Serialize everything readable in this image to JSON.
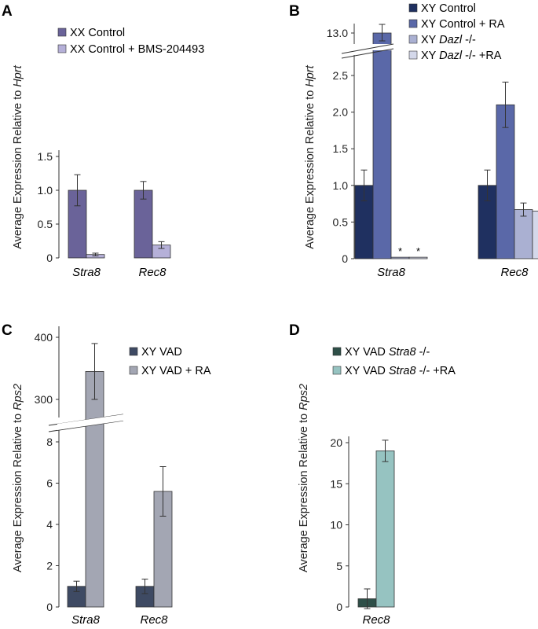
{
  "panels": {
    "A": {
      "letter": "A",
      "ylabel_main": "Average Expression Relative to ",
      "ylabel_italic": "Hprt"
    },
    "B": {
      "letter": "B",
      "ylabel_main": "Average Expression Relative to ",
      "ylabel_italic": "Hprt",
      "asterisk": "*"
    },
    "C": {
      "letter": "C",
      "ylabel_main": "Average Expression Relative to ",
      "ylabel_italic": "Rps2"
    },
    "D": {
      "letter": "D",
      "ylabel_main": "Average Expression Relative to ",
      "ylabel_italic": "Rps2"
    }
  },
  "legends": {
    "A": [
      {
        "parts": [
          {
            "t": "XX Control",
            "i": false
          }
        ]
      },
      {
        "parts": [
          {
            "t": "XX Control + BMS-204493",
            "i": false
          }
        ]
      }
    ],
    "B": [
      {
        "parts": [
          {
            "t": "XY Control",
            "i": false
          }
        ]
      },
      {
        "parts": [
          {
            "t": "XY Control + RA",
            "i": false
          }
        ]
      },
      {
        "parts": [
          {
            "t": "XY ",
            "i": false
          },
          {
            "t": "Dazl",
            "i": true
          },
          {
            "t": " -/-",
            "i": false
          }
        ]
      },
      {
        "parts": [
          {
            "t": "XY ",
            "i": false
          },
          {
            "t": "Dazl",
            "i": true
          },
          {
            "t": " -/- +RA",
            "i": false
          }
        ]
      }
    ],
    "C": [
      {
        "parts": [
          {
            "t": "XY VAD",
            "i": false
          }
        ]
      },
      {
        "parts": [
          {
            "t": "XY VAD + RA",
            "i": false
          }
        ]
      }
    ],
    "D": [
      {
        "parts": [
          {
            "t": "XY VAD ",
            "i": false
          },
          {
            "t": "Stra8",
            "i": true
          },
          {
            "t": " -/-",
            "i": false
          }
        ]
      },
      {
        "parts": [
          {
            "t": "XY VAD ",
            "i": false
          },
          {
            "t": "Stra8",
            "i": true
          },
          {
            "t": " -/- +RA",
            "i": false
          }
        ]
      }
    ]
  },
  "colors": {
    "A": [
      "#6a6399",
      "#b5b0d8"
    ],
    "B": [
      "#1f3060",
      "#5a68a8",
      "#aab0d2",
      "#d4d8ea"
    ],
    "C": [
      "#3e4a63",
      "#a3a6b3"
    ],
    "D": [
      "#2e4f48",
      "#96c3c1"
    ]
  },
  "chart_data": [
    {
      "panel": "A",
      "type": "bar",
      "categories": [
        "Stra8",
        "Rec8"
      ],
      "series": [
        {
          "values": [
            1.0,
            1.0
          ],
          "errors": [
            0.23,
            0.13
          ]
        },
        {
          "values": [
            0.05,
            0.19
          ],
          "errors": [
            0.02,
            0.05
          ]
        }
      ],
      "ylim": [
        0,
        1.5
      ],
      "yticks": [
        "0",
        "0.5",
        "1.0",
        "1.5"
      ],
      "ylabel": "Average Expression Relative to Hprt",
      "grid": false,
      "legend": "top"
    },
    {
      "panel": "B",
      "type": "bar",
      "categories": [
        "Stra8",
        "Rec8"
      ],
      "series": [
        {
          "values": [
            1.0,
            1.0
          ],
          "errors": [
            0.21,
            0.21
          ]
        },
        {
          "values": [
            13.0,
            2.1
          ],
          "errors": [
            0.15,
            0.31
          ]
        },
        {
          "values": [
            0.02,
            0.67
          ],
          "errors": [
            0.0,
            0.09
          ]
        },
        {
          "values": [
            0.02,
            0.65
          ],
          "errors": [
            0.0,
            0.08
          ]
        }
      ],
      "axis_break": {
        "lower": [
          0,
          2.5
        ],
        "upper_tick": "13.0"
      },
      "yticks": [
        "0",
        "0.5",
        "1.0",
        "1.5",
        "2.0",
        "2.5",
        "13.0"
      ],
      "ylabel": "Average Expression Relative to Hprt",
      "grid": false,
      "legend": "top-right"
    },
    {
      "panel": "C",
      "type": "bar",
      "categories": [
        "Stra8",
        "Rec8"
      ],
      "series": [
        {
          "values": [
            1.0,
            1.0
          ],
          "errors": [
            0.25,
            0.35
          ]
        },
        {
          "values": [
            345,
            5.6
          ],
          "errors": [
            45,
            1.2
          ]
        }
      ],
      "axis_break": {
        "lower": [
          0,
          8
        ],
        "upper": [
          300,
          400
        ]
      },
      "yticks": [
        "0",
        "2",
        "4",
        "6",
        "8",
        "300",
        "400"
      ],
      "ylabel": "Average Expression Relative to Rps2",
      "grid": false,
      "legend": "top"
    },
    {
      "panel": "D",
      "type": "bar",
      "categories": [
        "Rec8"
      ],
      "series": [
        {
          "values": [
            1.0
          ],
          "errors": [
            1.2
          ]
        },
        {
          "values": [
            19.0
          ],
          "errors": [
            1.3
          ]
        }
      ],
      "ylim": [
        0,
        20
      ],
      "yticks": [
        "0",
        "5",
        "10",
        "15",
        "20"
      ],
      "ylabel": "Average Expression Relative to Rps2",
      "grid": false,
      "legend": "top"
    }
  ]
}
